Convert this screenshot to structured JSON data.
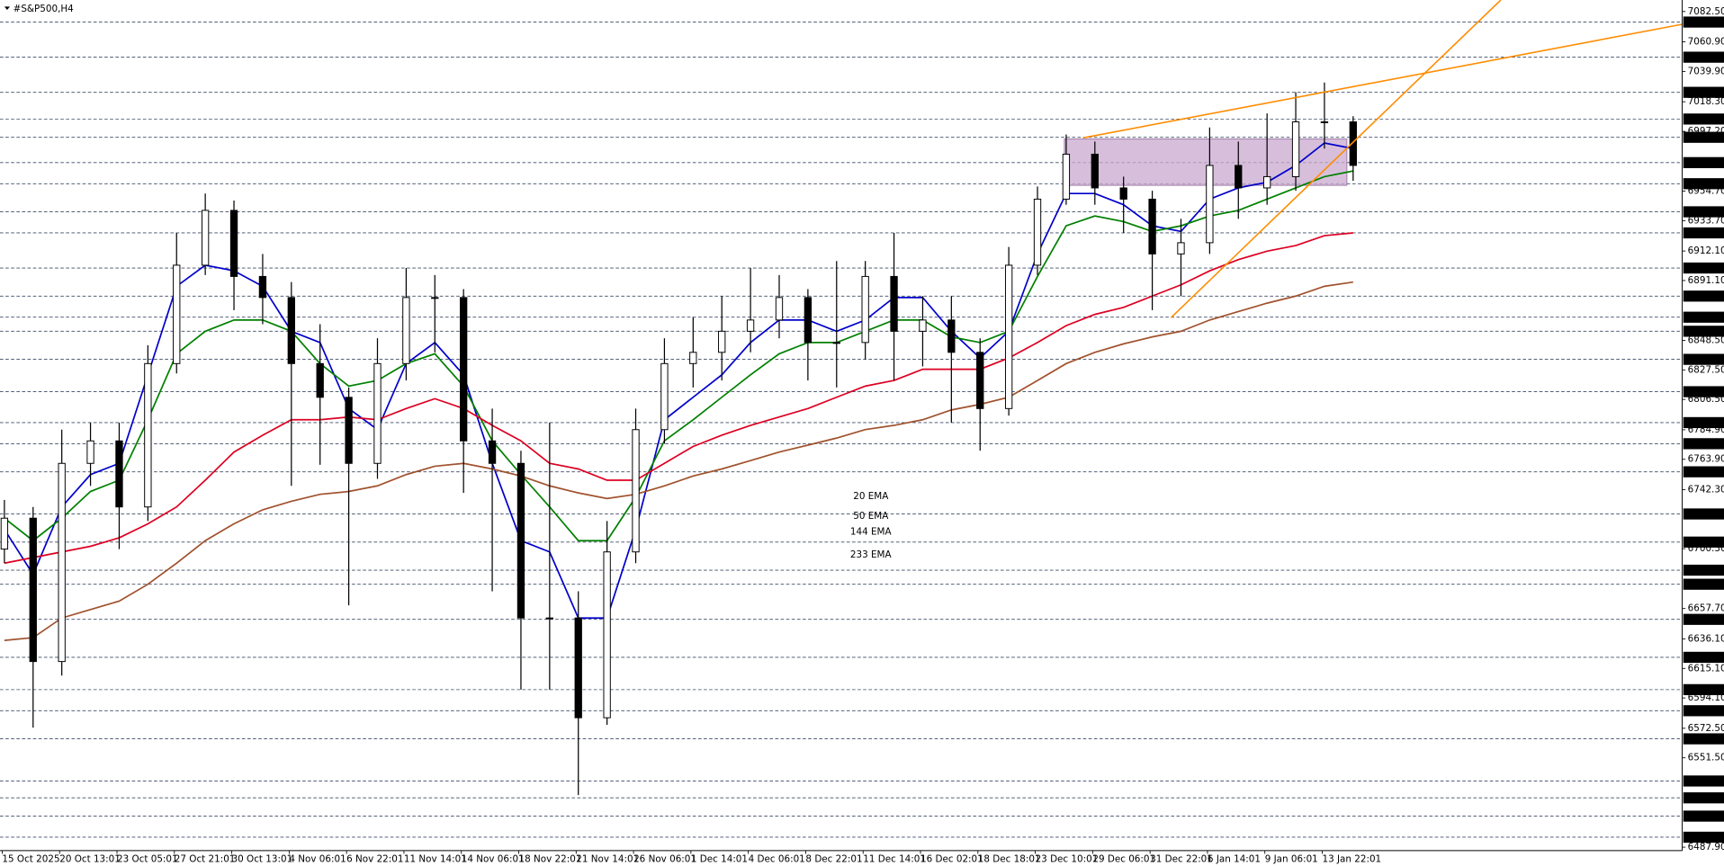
{
  "chart_data": {
    "type": "candlestick",
    "title": "#S&P500,H4",
    "categories": [
      "15 Oct 2025",
      null,
      "20 Oct 13:01",
      null,
      "23 Oct 05:01",
      null,
      "27 Oct 21:01",
      null,
      "30 Oct 13:01",
      null,
      "4 Nov 06:01",
      null,
      "6 Nov 22:01",
      null,
      "11 Nov 14:01",
      null,
      "14 Nov 06:01",
      null,
      "18 Nov 22:01",
      null,
      "21 Nov 14:01",
      null,
      "26 Nov 06:01",
      null,
      "1 Dec 14:01",
      null,
      "4 Dec 06:01",
      null,
      "8 Dec 22:01",
      null,
      "11 Dec 14:01",
      null,
      "16 Dec 02:01",
      null,
      "18 Dec 18:01",
      null,
      "23 Dec 10:01",
      null,
      "29 Dec 06:01",
      null,
      "31 Dec 22:01",
      null,
      "6 Jan 14:01",
      null,
      "9 Jan 06:01",
      null,
      "13 Jan 22:01",
      null
    ],
    "open": [
      6700,
      6722,
      6620,
      6761,
      6777,
      6730,
      6832,
      6902,
      6941,
      6894,
      6879,
      6832,
      6808,
      6761,
      6832,
      6879,
      6879,
      6777,
      6761,
      6651,
      6651,
      6580,
      6698,
      6785,
      6832,
      6840,
      6855,
      6863,
      6879,
      6847,
      6847,
      6894,
      6855,
      6863,
      6840,
      6800,
      6902,
      6949,
      6981,
      6957,
      6949,
      6910,
      6918,
      6973,
      6957,
      6965,
      7004,
      7004
    ],
    "high": [
      6735,
      6730,
      6785,
      6790,
      6790,
      6845,
      6925,
      6953,
      6948,
      6910,
      6890,
      6860,
      6815,
      6850,
      6900,
      6895,
      6885,
      6800,
      6770,
      6790,
      6670,
      6720,
      6800,
      6850,
      6865,
      6880,
      6900,
      6895,
      6885,
      6905,
      6905,
      6925,
      6880,
      6880,
      6850,
      6915,
      6958,
      6995,
      6990,
      6965,
      6955,
      6935,
      7000,
      6990,
      7010,
      7025,
      7032,
      7008
    ],
    "low": [
      6690,
      6573,
      6610,
      6745,
      6700,
      6720,
      6825,
      6895,
      6870,
      6860,
      6745,
      6760,
      6660,
      6750,
      6820,
      6840,
      6740,
      6670,
      6600,
      6600,
      6525,
      6575,
      6690,
      6775,
      6815,
      6820,
      6840,
      6850,
      6820,
      6815,
      6835,
      6820,
      6830,
      6790,
      6770,
      6795,
      6895,
      6945,
      6945,
      6925,
      6870,
      6880,
      6910,
      6935,
      6945,
      6955,
      6985,
      6962
    ],
    "close": [
      6722,
      6620,
      6761,
      6777,
      6730,
      6832,
      6902,
      6941,
      6894,
      6879,
      6832,
      6808,
      6761,
      6832,
      6879,
      6879,
      6777,
      6761,
      6651,
      6651,
      6580,
      6698,
      6785,
      6832,
      6840,
      6855,
      6863,
      6879,
      6847,
      6847,
      6894,
      6855,
      6863,
      6840,
      6800,
      6902,
      6949,
      6981,
      6957,
      6949,
      6910,
      6918,
      6973,
      6957,
      6965,
      7004,
      7004,
      6973
    ],
    "series": [
      {
        "name": "20 EMA",
        "color": "#0000cc",
        "values": [
          6714,
          6682,
          6730,
          6753,
          6761,
          6824,
          6887,
          6902,
          6898,
          6887,
          6855,
          6847,
          6800,
          6785,
          6832,
          6847,
          6824,
          6761,
          6706,
          6698,
          6651,
          6651,
          6714,
          6792,
          6808,
          6824,
          6847,
          6863,
          6863,
          6855,
          6863,
          6879,
          6879,
          6855,
          6836,
          6855,
          6910,
          6953,
          6953,
          6945,
          6930,
          6926,
          6949,
          6957,
          6961,
          6973,
          6989,
          6985
        ]
      },
      {
        "name": "50 EMA",
        "color": "#008000",
        "values": [
          6722,
          6706,
          6722,
          6741,
          6749,
          6792,
          6839,
          6855,
          6863,
          6863,
          6855,
          6832,
          6816,
          6820,
          6832,
          6839,
          6816,
          6777,
          6753,
          6730,
          6706,
          6706,
          6737,
          6777,
          6792,
          6808,
          6824,
          6839,
          6847,
          6847,
          6855,
          6863,
          6863,
          6851,
          6847,
          6855,
          6894,
          6930,
          6937,
          6933,
          6926,
          6930,
          6937,
          6941,
          6949,
          6957,
          6965,
          6969
        ]
      },
      {
        "name": "144 EMA",
        "color": "#dd0022",
        "values": [
          6690,
          6694,
          6698,
          6702,
          6708,
          6718,
          6730,
          6749,
          6769,
          6781,
          6792,
          6792,
          6794,
          6792,
          6800,
          6807,
          6800,
          6788,
          6777,
          6761,
          6757,
          6749,
          6749,
          6761,
          6773,
          6781,
          6788,
          6794,
          6800,
          6808,
          6816,
          6820,
          6828,
          6828,
          6828,
          6836,
          6847,
          6859,
          6867,
          6872,
          6880,
          6888,
          6898,
          6906,
          6912,
          6916,
          6923,
          6925
        ]
      },
      {
        "name": "233 EMA",
        "color": "#a0522d",
        "values": [
          6635,
          6637,
          6651,
          6657,
          6663,
          6675,
          6690,
          6706,
          6718,
          6728,
          6734,
          6739,
          6741,
          6745,
          6753,
          6759,
          6761,
          6757,
          6752,
          6745,
          6740,
          6736,
          6739,
          6745,
          6752,
          6757,
          6763,
          6769,
          6774,
          6779,
          6785,
          6788,
          6792,
          6799,
          6803,
          6808,
          6820,
          6832,
          6840,
          6846,
          6851,
          6855,
          6863,
          6869,
          6875,
          6880,
          6887,
          6890
        ]
      }
    ],
    "ylim": [
      6485.5,
      7090.7
    ],
    "yticks": [
      {
        "value": 7082.5,
        "label": "7082.50"
      },
      {
        "value": 7060.9,
        "label": "7060.90"
      },
      {
        "value": 7039.9,
        "label": "7039.90"
      },
      {
        "value": 7018.3,
        "label": "7018.30"
      },
      {
        "value": 6997.2,
        "label": "6997.20"
      },
      {
        "value": 6954.7,
        "label": "6954.70"
      },
      {
        "value": 6933.7,
        "label": "6933.70"
      },
      {
        "value": 6912.1,
        "label": "6912.10"
      },
      {
        "value": 6891.1,
        "label": "6891.10"
      },
      {
        "value": 6848.5,
        "label": "6848.50"
      },
      {
        "value": 6827.5,
        "label": "6827.50"
      },
      {
        "value": 6806.5,
        "label": "6806.50"
      },
      {
        "value": 6784.9,
        "label": "6784.90"
      },
      {
        "value": 6763.9,
        "label": "6763.90"
      },
      {
        "value": 6742.3,
        "label": "6742.30"
      },
      {
        "value": 6700.3,
        "label": "6700.30"
      },
      {
        "value": 6657.7,
        "label": "6657.70"
      },
      {
        "value": 6636.1,
        "label": "6636.10"
      },
      {
        "value": 6615.1,
        "label": "6615.10"
      },
      {
        "value": 6594.1,
        "label": "6594.10"
      },
      {
        "value": 6572.5,
        "label": "6572.50"
      },
      {
        "value": 6551.5,
        "label": "6551.50"
      },
      {
        "value": 6487.9,
        "label": "6487.90"
      }
    ],
    "levels": [
      {
        "value": 7075,
        "label": "7075.00"
      },
      {
        "value": 7050,
        "label": "7050.00"
      },
      {
        "value": 7025,
        "label": "7025.00"
      },
      {
        "value": 7006,
        "label": "7006.00"
      },
      {
        "value": 6993,
        "label": "6993.00"
      },
      {
        "value": 6975,
        "label": "6975.00"
      },
      {
        "value": 6960,
        "label": "6960.00"
      },
      {
        "value": 6940,
        "label": "6940.00"
      },
      {
        "value": 6925,
        "label": "6925.00"
      },
      {
        "value": 6900,
        "label": "6900.00"
      },
      {
        "value": 6880,
        "label": "6880.00"
      },
      {
        "value": 6865,
        "label": "6865.00"
      },
      {
        "value": 6855,
        "label": "6855.00"
      },
      {
        "value": 6835,
        "label": "6835.00"
      },
      {
        "value": 6812,
        "label": "6812.00"
      },
      {
        "value": 6790,
        "label": "6790.00"
      },
      {
        "value": 6775,
        "label": "6775.00"
      },
      {
        "value": 6755,
        "label": "6755.00"
      },
      {
        "value": 6725,
        "label": "6725.00"
      },
      {
        "value": 6705,
        "label": "6705.00"
      },
      {
        "value": 6685,
        "label": "6685.00"
      },
      {
        "value": 6675,
        "label": "6675.00"
      },
      {
        "value": 6650,
        "label": "6650.00"
      },
      {
        "value": 6623,
        "label": "6623.00"
      },
      {
        "value": 6600,
        "label": "6600.00"
      },
      {
        "value": 6585,
        "label": "6585.00"
      },
      {
        "value": 6565,
        "label": "6565.00"
      },
      {
        "value": 6535,
        "label": "6535.00"
      },
      {
        "value": 6523,
        "label": "6523.00"
      },
      {
        "value": 6510,
        "label": "6510.00"
      },
      {
        "value": 6495,
        "label": "6495.00"
      }
    ],
    "up_color": "#ffffff",
    "down_color": "#000000"
  }
}
